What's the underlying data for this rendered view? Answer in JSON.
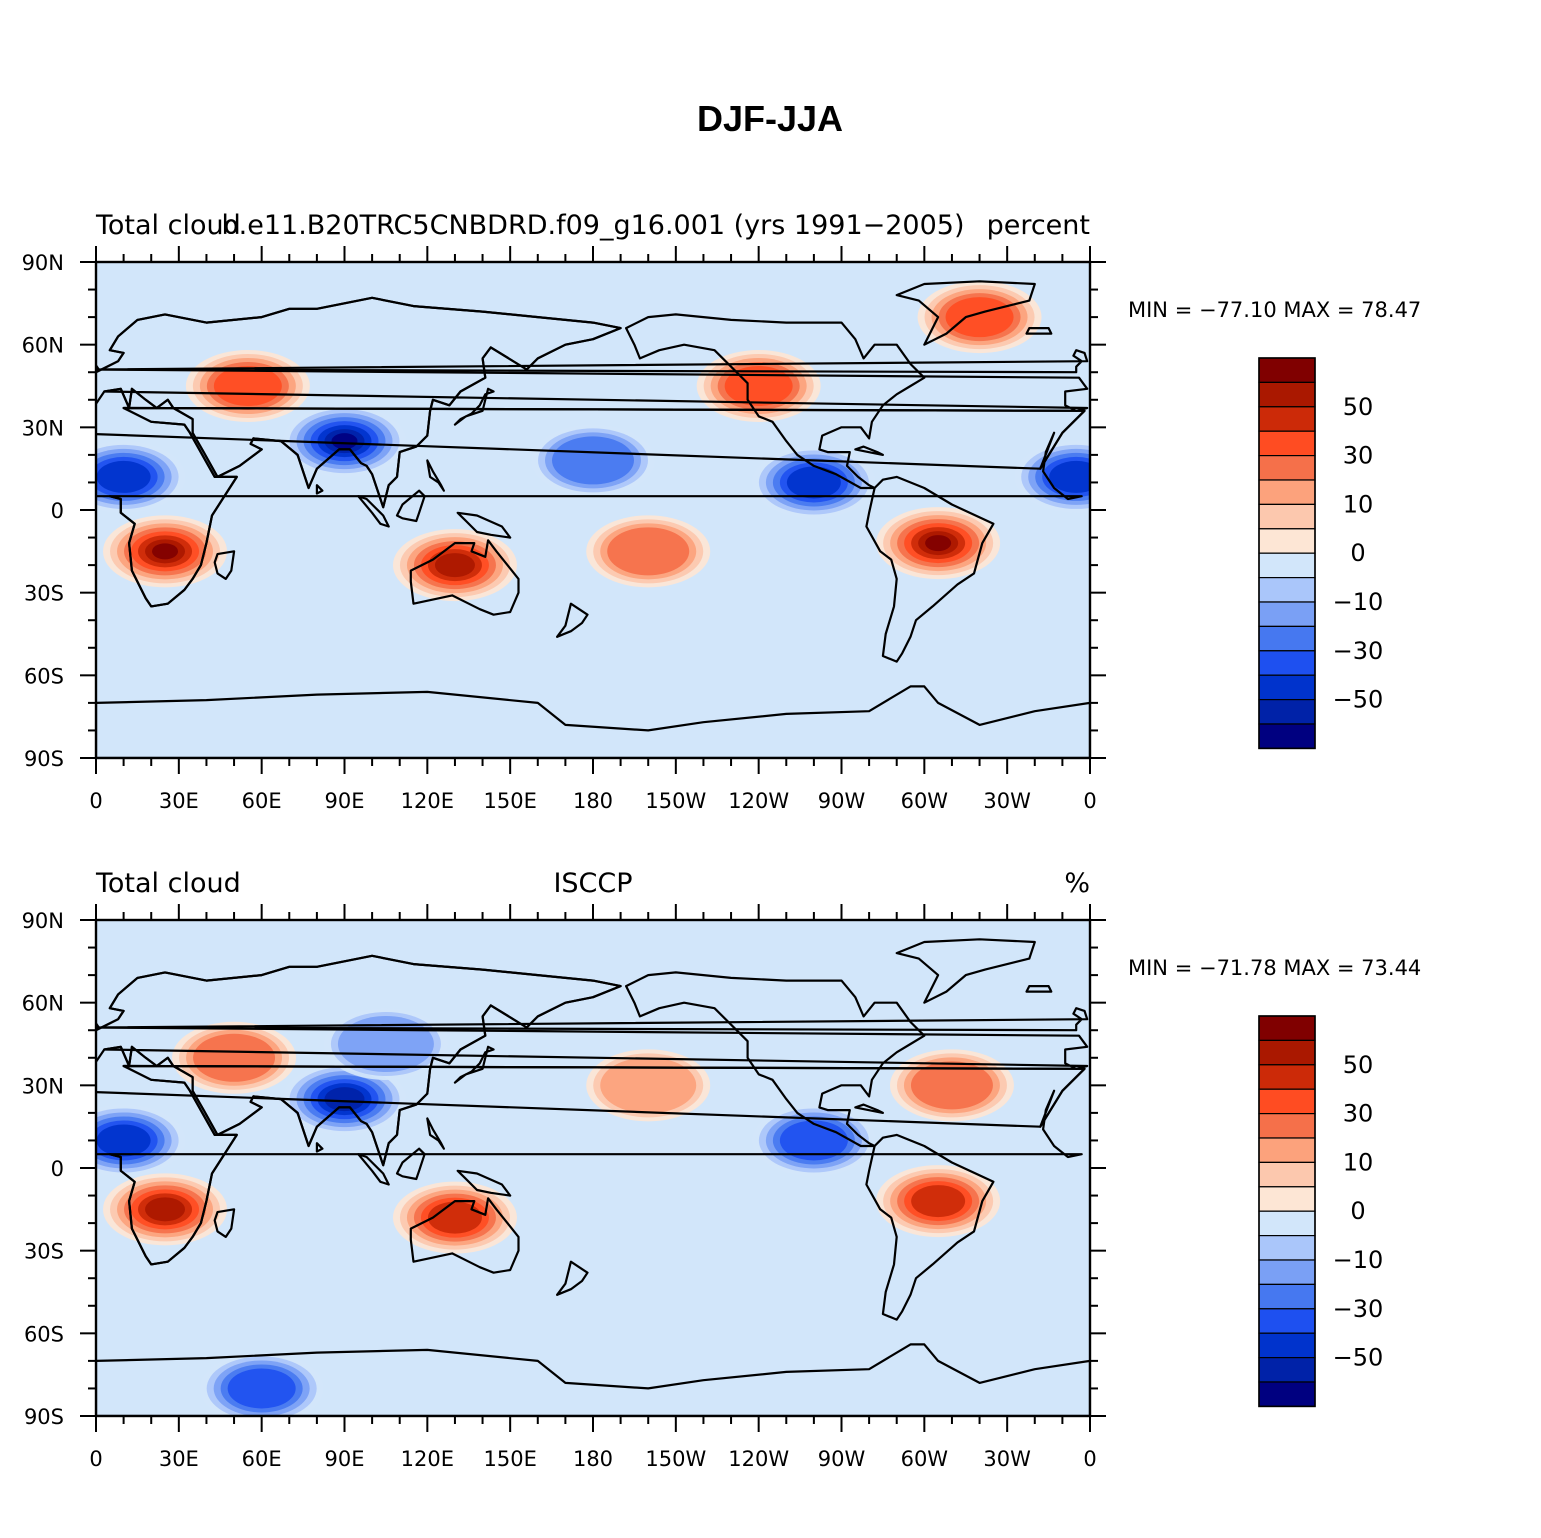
{
  "main_title": "DJF-JJA",
  "lat_tick_labels": [
    "90N",
    "60N",
    "30N",
    "0",
    "30S",
    "60S",
    "90S"
  ],
  "lon_tick_labels": [
    "0",
    "30E",
    "60E",
    "90E",
    "120E",
    "150E",
    "180",
    "150W",
    "120W",
    "90W",
    "60W",
    "30W",
    "0"
  ],
  "colorbar_labels": [
    "50",
    "30",
    "10",
    "0",
    "−10",
    "−30",
    "−50"
  ],
  "colors": {
    "levels": [
      "#000080",
      "#0022a8",
      "#0033cc",
      "#1e50f0",
      "#4678f0",
      "#7aa0f5",
      "#aac6fa",
      "#d2e6fa",
      "#fde6d5",
      "#fcc8ae",
      "#fca27c",
      "#f5704a",
      "#ff4c22",
      "#cc2a08",
      "#aa1800",
      "#800000"
    ],
    "ocean_background": "#d2e6fa",
    "coastline": "#000000"
  },
  "panels": [
    {
      "left_label": "Total cloud",
      "center_label": "b.e11.B20TRC5CNBDRD.f09_g16.001 (yrs 1991−2005)",
      "right_label": "percent",
      "stats": "MIN = −77.10  MAX =  78.47"
    },
    {
      "left_label": "Total cloud",
      "center_label": "ISCCP",
      "right_label": "%",
      "stats": "MIN = −71.78  MAX =  73.44"
    }
  ],
  "chart_data": [
    {
      "type": "heatmap",
      "title": "DJF-JJA",
      "subtitle_left": "Total cloud",
      "subtitle_center": "b.e11.B20TRC5CNBDRD.f09_g16.001 (yrs 1991−2005)",
      "units": "percent",
      "min": -77.1,
      "max": 78.47,
      "x_ticks": [
        "0",
        "30E",
        "60E",
        "90E",
        "120E",
        "150E",
        "180",
        "150W",
        "120W",
        "90W",
        "60W",
        "30W",
        "0"
      ],
      "y_ticks": [
        "90N",
        "60N",
        "30N",
        "0",
        "30S",
        "60S",
        "90S"
      ],
      "xlim": [
        0,
        360
      ],
      "ylim": [
        -90,
        90
      ],
      "contour_levels": [
        -70,
        -60,
        -50,
        -40,
        -30,
        -20,
        -10,
        0,
        10,
        20,
        30,
        40,
        50,
        60,
        70
      ],
      "colorbar_tick_labels": [
        "50",
        "30",
        "10",
        "0",
        "−10",
        "−30",
        "−50"
      ],
      "features": [
        {
          "lon": 25,
          "lat": -15,
          "value": 70
        },
        {
          "lon": 55,
          "lat": 45,
          "value": 45
        },
        {
          "lon": 130,
          "lat": -20,
          "value": 60
        },
        {
          "lon": 305,
          "lat": -12,
          "value": 70
        },
        {
          "lon": 240,
          "lat": 45,
          "value": 40
        },
        {
          "lon": 200,
          "lat": -15,
          "value": 30
        },
        {
          "lon": 320,
          "lat": 70,
          "value": 40
        },
        {
          "lon": 90,
          "lat": 25,
          "value": -70
        },
        {
          "lon": 10,
          "lat": 12,
          "value": -55
        },
        {
          "lon": 260,
          "lat": 10,
          "value": -50
        },
        {
          "lon": 355,
          "lat": 12,
          "value": -50
        },
        {
          "lon": 180,
          "lat": 18,
          "value": -30
        }
      ]
    },
    {
      "type": "heatmap",
      "title": "DJF-JJA",
      "subtitle_left": "Total cloud",
      "subtitle_center": "ISCCP",
      "units": "%",
      "min": -71.78,
      "max": 73.44,
      "x_ticks": [
        "0",
        "30E",
        "60E",
        "90E",
        "120E",
        "150E",
        "180",
        "150W",
        "120W",
        "90W",
        "60W",
        "30W",
        "0"
      ],
      "y_ticks": [
        "90N",
        "60N",
        "30N",
        "0",
        "30S",
        "60S",
        "90S"
      ],
      "xlim": [
        0,
        360
      ],
      "ylim": [
        -90,
        90
      ],
      "contour_levels": [
        -70,
        -60,
        -50,
        -40,
        -30,
        -20,
        -10,
        0,
        10,
        20,
        30,
        40,
        50,
        60,
        70
      ],
      "colorbar_tick_labels": [
        "50",
        "30",
        "10",
        "0",
        "−10",
        "−30",
        "−50"
      ],
      "features": [
        {
          "lon": 25,
          "lat": -15,
          "value": 65
        },
        {
          "lon": 130,
          "lat": -18,
          "value": 55
        },
        {
          "lon": 305,
          "lat": -12,
          "value": 55
        },
        {
          "lon": 310,
          "lat": 30,
          "value": 35
        },
        {
          "lon": 200,
          "lat": 30,
          "value": 25
        },
        {
          "lon": 50,
          "lat": 40,
          "value": 30
        },
        {
          "lon": 90,
          "lat": 25,
          "value": -65
        },
        {
          "lon": 10,
          "lat": 10,
          "value": -50
        },
        {
          "lon": 260,
          "lat": 10,
          "value": -45
        },
        {
          "lon": 60,
          "lat": -80,
          "value": -40
        },
        {
          "lon": 105,
          "lat": 45,
          "value": -25
        }
      ]
    }
  ]
}
